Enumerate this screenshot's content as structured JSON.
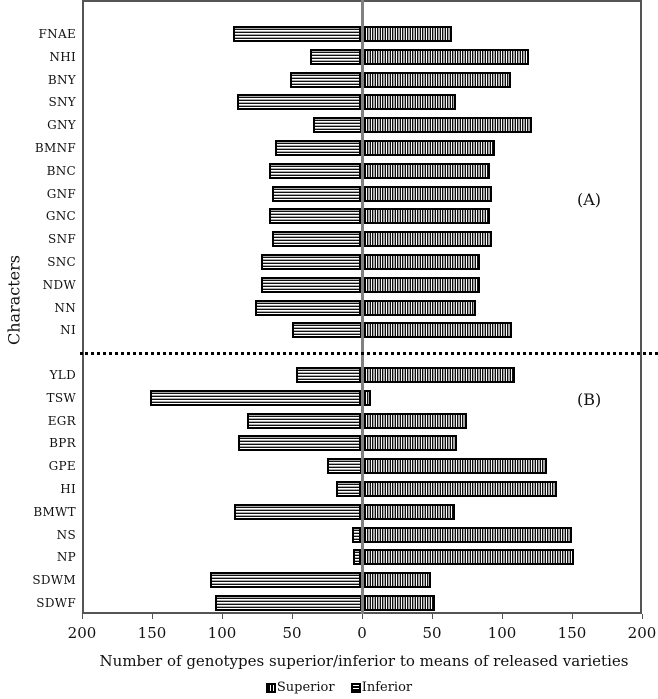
{
  "chart_data": {
    "type": "bar",
    "orientation": "horizontal-diverging",
    "title": "",
    "xlabel": "Number of genotypes superior/inferior to means of released varieties",
    "ylabel": "Characters",
    "xlim": [
      -200,
      200
    ],
    "x_ticks": [
      "200",
      "150",
      "100",
      "50",
      "0",
      "50",
      "100",
      "150",
      "200"
    ],
    "grid": false,
    "legend_position": "bottom",
    "legend": [
      "Superior",
      "Inferior"
    ],
    "sections": [
      {
        "annotation": "(A)",
        "categories": [
          "FNAE",
          "NHI",
          "BNY",
          "SNY",
          "GNY",
          "BMNF",
          "BNC",
          "GNF",
          "GNC",
          "SNF",
          "SNC",
          "NDW",
          "NN",
          "NI"
        ],
        "series": [
          {
            "name": "Superior",
            "side": "right",
            "values": [
              63,
              118,
              105,
              66,
              120,
              94,
              90,
              92,
              90,
              92,
              83,
              83,
              80,
              106
            ]
          },
          {
            "name": "Inferior",
            "side": "left",
            "values": [
              92,
              37,
              51,
              89,
              35,
              62,
              66,
              64,
              66,
              64,
              72,
              72,
              76,
              50
            ]
          }
        ]
      },
      {
        "annotation": "(B)",
        "categories": [
          "YLD",
          "TSW",
          "EGR",
          "BPR",
          "GPE",
          "HI",
          "BMWT",
          "NS",
          "NP",
          "SDWM",
          "SDWF"
        ],
        "series": [
          {
            "name": "Superior",
            "side": "right",
            "values": [
              108,
              5,
              74,
              67,
              131,
              138,
              65,
              149,
              150,
              48,
              51
            ]
          },
          {
            "name": "Inferior",
            "side": "left",
            "values": [
              47,
              151,
              82,
              88,
              25,
              18,
              91,
              7,
              6,
              108,
              105
            ]
          }
        ]
      }
    ]
  },
  "labels": {
    "section_a": "(A)",
    "section_b": "(B)",
    "x_title": "Number of genotypes superior/inferior to means of released varieties",
    "y_title": "Characters",
    "legend_superior": "Superior",
    "legend_inferior": "Inferior"
  }
}
